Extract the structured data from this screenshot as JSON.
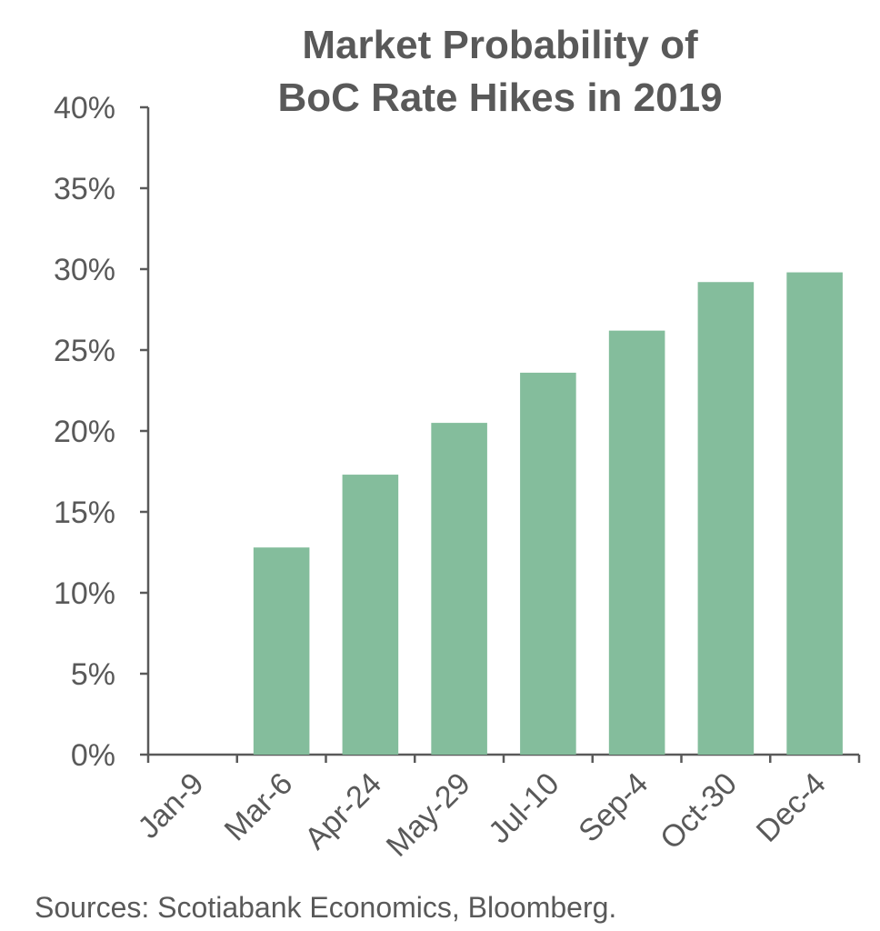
{
  "chart_data": {
    "type": "bar",
    "title_lines": [
      "Market Probability of",
      "BoC Rate Hikes in 2019"
    ],
    "categories": [
      "Jan-9",
      "Mar-6",
      "Apr-24",
      "May-29",
      "Jul-10",
      "Sep-4",
      "Oct-30",
      "Dec-4"
    ],
    "values": [
      0,
      12.8,
      17.3,
      20.5,
      23.6,
      26.2,
      29.2,
      29.8
    ],
    "y_unit": "%",
    "ylim": [
      0,
      40
    ],
    "y_ticks": [
      0,
      5,
      10,
      15,
      20,
      25,
      30,
      35,
      40
    ],
    "y_tick_labels": [
      "0%",
      "5%",
      "10%",
      "15%",
      "20%",
      "25%",
      "30%",
      "35%",
      "40%"
    ],
    "xlabel": "",
    "ylabel": "",
    "grid": false,
    "legend": "none",
    "bar_color": "#84bd9c",
    "axis_color": "#595959"
  },
  "source_text": "Sources: Scotiabank Economics, Bloomberg."
}
